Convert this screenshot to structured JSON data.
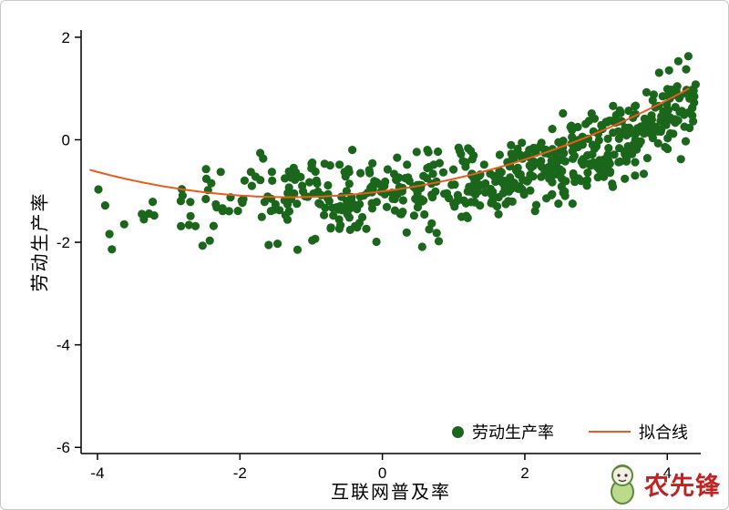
{
  "figure": {
    "background": "#ffffff",
    "border_color": "#c9c9c9"
  },
  "watermark": {
    "text": "农先锋",
    "color": "#c42222"
  },
  "chart_data": {
    "type": "scatter",
    "title": "",
    "xlabel": "互联网普及率",
    "ylabel": "劳动生产率",
    "xlim": [
      -4.23,
      4.47
    ],
    "ylim": [
      -6.12,
      2.14
    ],
    "xticks": [
      -4,
      -2,
      0,
      2,
      4
    ],
    "yticks": [
      2,
      0,
      -2,
      -4,
      -6
    ],
    "grid": false,
    "axis_color": "#000000",
    "legend": {
      "position": "bottom-right-inside",
      "frame": false,
      "entries": [
        {
          "label": "劳动生产率",
          "marker": "dot",
          "color": "#1a661a"
        },
        {
          "label": "拟合线",
          "marker": "line",
          "color": "#e85c1e"
        }
      ]
    },
    "series": [
      {
        "name": "劳动生产率",
        "type": "scatter",
        "color": "#1a661a",
        "marker_radius": 4.6,
        "n_points": 620,
        "seed": 20240601,
        "x_segments": [
          [
            -4.25,
            -3.0,
            0.015
          ],
          [
            -3.0,
            -2.0,
            0.05
          ],
          [
            -2.0,
            -1.0,
            0.09
          ],
          [
            -1.0,
            0.0,
            0.12
          ],
          [
            0.0,
            1.0,
            0.13
          ],
          [
            1.0,
            2.0,
            0.15
          ],
          [
            2.0,
            3.0,
            0.17
          ],
          [
            3.0,
            3.95,
            0.17
          ],
          [
            3.95,
            4.4,
            0.115
          ]
        ],
        "mean_poly": [
          -1.05,
          0.1,
          0.03,
          0.01
        ],
        "noise_sd": 0.38,
        "y_clamp": [
          -2.35,
          1.65
        ]
      },
      {
        "name": "拟合线",
        "type": "line",
        "color": "#e85c1e",
        "width": 2,
        "poly": [
          -1.006,
          0.1755,
          0.0675
        ],
        "x_range": [
          -4.1,
          4.33
        ]
      }
    ]
  }
}
